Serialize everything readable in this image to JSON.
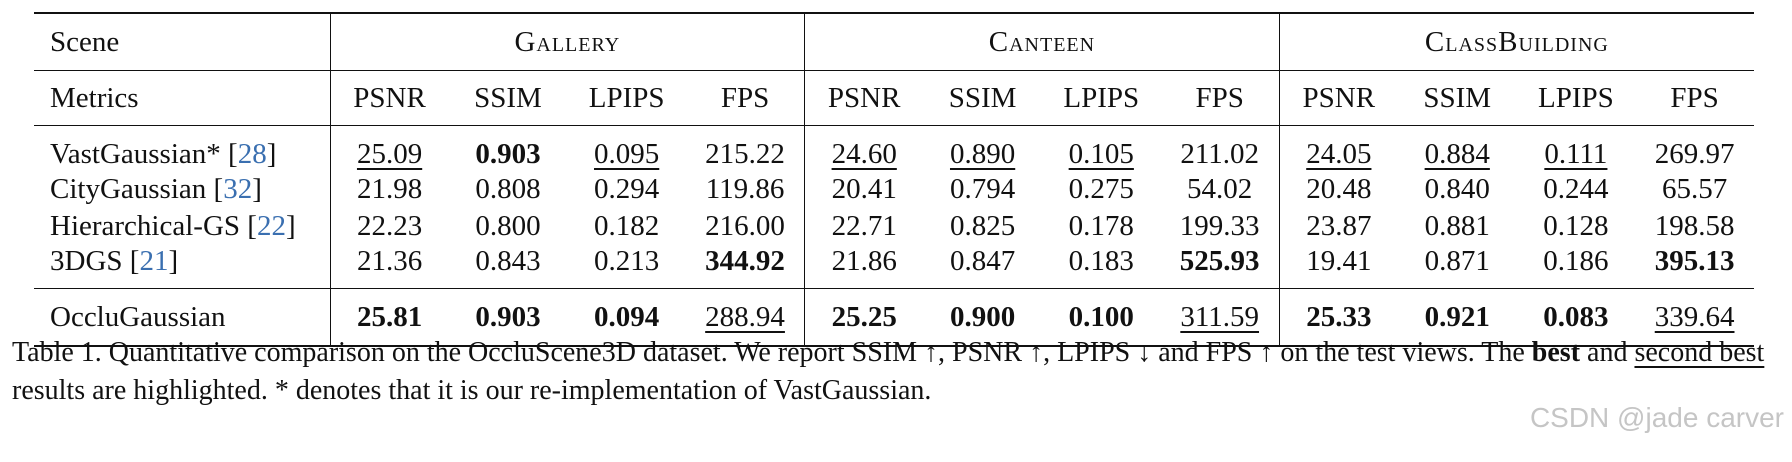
{
  "table": {
    "scene_label": "Scene",
    "metrics_label": "Metrics",
    "scenes": [
      "Gallery",
      "Canteen",
      "ClassBuilding"
    ],
    "metrics": [
      "PSNR",
      "SSIM",
      "LPIPS",
      "FPS"
    ],
    "rows": [
      {
        "method": "VastGaussian*",
        "cite": "28",
        "values": [
          "25.09",
          "0.903",
          "0.095",
          "215.22",
          "24.60",
          "0.890",
          "0.105",
          "211.02",
          "24.05",
          "0.884",
          "0.111",
          "269.97"
        ]
      },
      {
        "method": "CityGaussian",
        "cite": "32",
        "values": [
          "21.98",
          "0.808",
          "0.294",
          "119.86",
          "20.41",
          "0.794",
          "0.275",
          "54.02",
          "20.48",
          "0.840",
          "0.244",
          "65.57"
        ]
      },
      {
        "method": "Hierarchical-GS",
        "cite": "22",
        "values": [
          "22.23",
          "0.800",
          "0.182",
          "216.00",
          "22.71",
          "0.825",
          "0.178",
          "199.33",
          "23.87",
          "0.881",
          "0.128",
          "198.58"
        ]
      },
      {
        "method": "3DGS",
        "cite": "21",
        "values": [
          "21.36",
          "0.843",
          "0.213",
          "344.92",
          "21.86",
          "0.847",
          "0.183",
          "525.93",
          "19.41",
          "0.871",
          "0.186",
          "395.13"
        ]
      },
      {
        "method": "OccluGaussian",
        "cite": "",
        "values": [
          "25.81",
          "0.903",
          "0.094",
          "288.94",
          "25.25",
          "0.900",
          "0.100",
          "311.59",
          "25.33",
          "0.921",
          "0.083",
          "339.64"
        ]
      }
    ]
  },
  "caption": {
    "p1": "Table 1. Quantitative comparison on the OccluScene3D dataset. We report SSIM ↑, PSNR ↑, LPIPS ↓ and FPS ↑ on the test views. The ",
    "best": "best",
    "p2": " and ",
    "second": "second best",
    "p3": " results are highlighted. * denotes that it is our re-implementation of VastGaussian."
  },
  "watermark": "CSDN @jade carver"
}
